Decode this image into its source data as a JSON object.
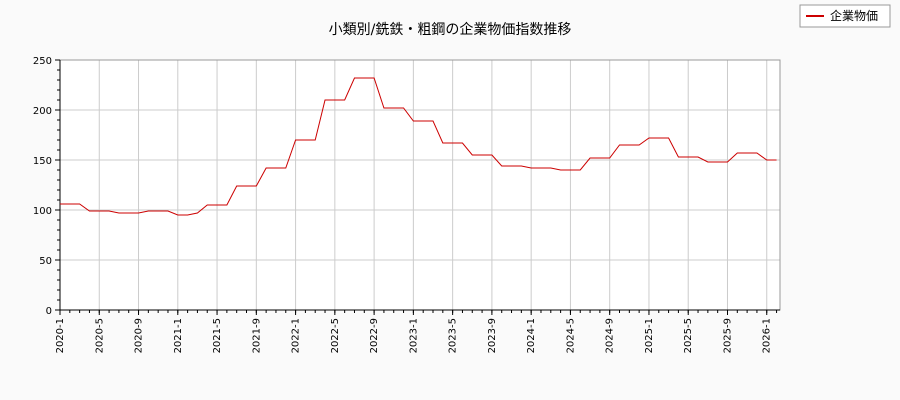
{
  "chart_data": {
    "type": "line",
    "title": "小類別/銑鉄・粗鋼の企業物価指数推移",
    "xlabel": "",
    "ylabel": "",
    "ylim": [
      0,
      250
    ],
    "yticks": [
      0,
      50,
      100,
      150,
      200,
      250
    ],
    "xticks": [
      "2020-1",
      "2020-5",
      "2020-9",
      "2021-1",
      "2021-5",
      "2021-9",
      "2022-1",
      "2022-5",
      "2022-9",
      "2023-1",
      "2023-5",
      "2023-9",
      "2024-1",
      "2024-5",
      "2024-9",
      "2025-1",
      "2025-5",
      "2025-9",
      "2026-1"
    ],
    "grid": true,
    "legend_position": "top-right",
    "series": [
      {
        "name": "企業物価",
        "color": "#cc0000",
        "x": [
          "2020-1",
          "2020-2",
          "2020-3",
          "2020-4",
          "2020-5",
          "2020-6",
          "2020-7",
          "2020-8",
          "2020-9",
          "2020-10",
          "2020-11",
          "2020-12",
          "2021-1",
          "2021-2",
          "2021-3",
          "2021-4",
          "2021-5",
          "2021-6",
          "2021-7",
          "2021-8",
          "2021-9",
          "2021-10",
          "2021-11",
          "2021-12",
          "2022-1",
          "2022-2",
          "2022-3",
          "2022-4",
          "2022-5",
          "2022-6",
          "2022-7",
          "2022-8",
          "2022-9",
          "2022-10",
          "2022-11",
          "2022-12",
          "2023-1",
          "2023-2",
          "2023-3",
          "2023-4",
          "2023-5",
          "2023-6",
          "2023-7",
          "2023-8",
          "2023-9",
          "2023-10",
          "2023-11",
          "2023-12",
          "2024-1",
          "2024-2",
          "2024-3",
          "2024-4",
          "2024-5",
          "2024-6",
          "2024-7",
          "2024-8",
          "2024-9",
          "2024-10",
          "2024-11",
          "2024-12",
          "2025-1",
          "2025-2",
          "2025-3",
          "2025-4",
          "2025-5",
          "2025-6",
          "2025-7",
          "2025-8",
          "2025-9",
          "2025-10",
          "2025-11",
          "2025-12",
          "2026-1",
          "2026-2"
        ],
        "values": [
          106,
          106,
          106,
          99,
          99,
          99,
          97,
          97,
          97,
          99,
          99,
          99,
          95,
          95,
          97,
          105,
          105,
          105,
          124,
          124,
          124,
          142,
          142,
          142,
          170,
          170,
          170,
          210,
          210,
          210,
          232,
          232,
          232,
          202,
          202,
          202,
          189,
          189,
          189,
          167,
          167,
          167,
          155,
          155,
          155,
          144,
          144,
          144,
          142,
          142,
          142,
          140,
          140,
          140,
          152,
          152,
          152,
          165,
          165,
          165,
          172,
          172,
          172,
          153,
          153,
          153,
          148,
          148,
          148,
          157,
          157,
          157,
          150,
          150
        ]
      }
    ]
  }
}
